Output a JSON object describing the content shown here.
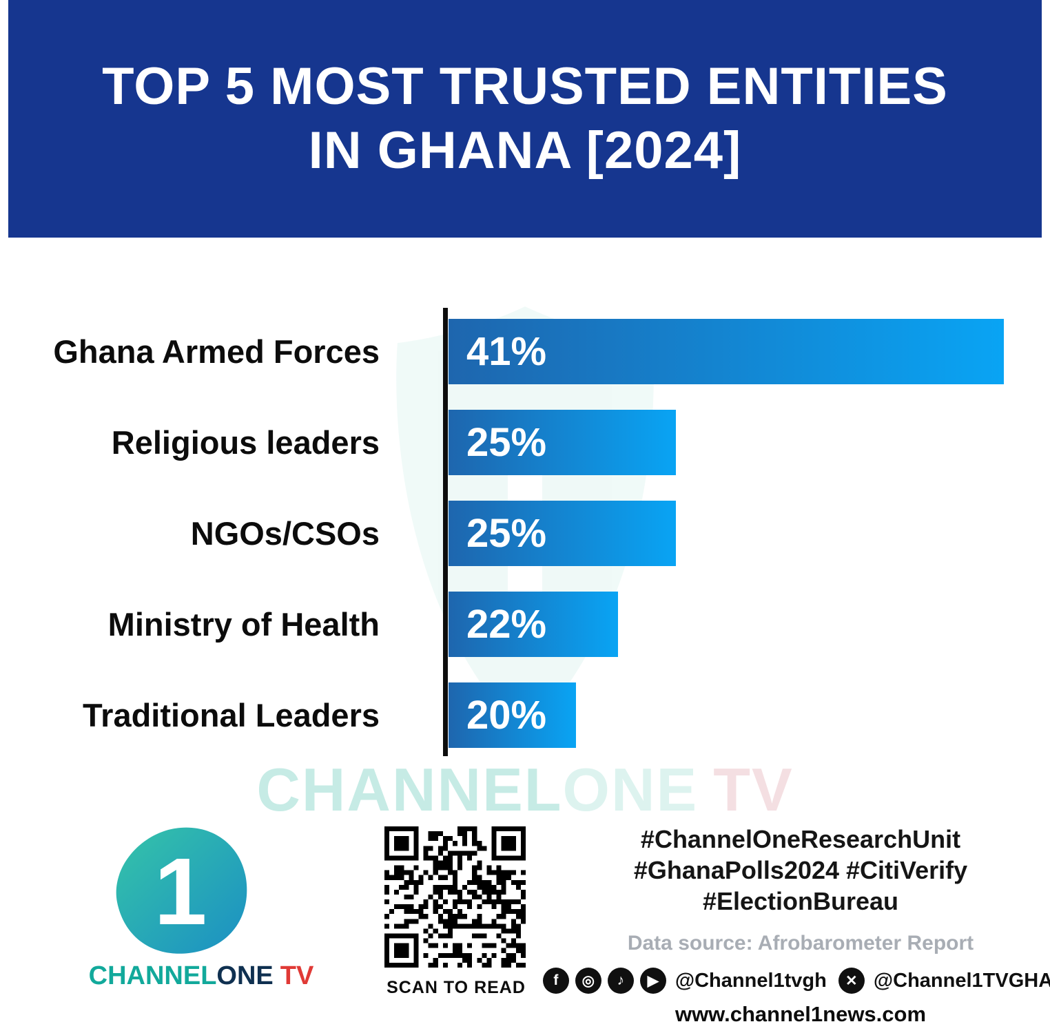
{
  "header": {
    "title_line1": "TOP 5 MOST TRUSTED ENTITIES",
    "title_line2": "IN GHANA [2024]"
  },
  "chart_data": {
    "type": "bar",
    "orientation": "horizontal",
    "title": "TOP 5 MOST TRUSTED ENTITIES IN GHANA [2024]",
    "categories": [
      "Ghana Armed Forces",
      "Religious leaders",
      "NGOs/CSOs",
      "Ministry of Health",
      "Traditional Leaders"
    ],
    "values": [
      41,
      25,
      25,
      22,
      20
    ],
    "value_labels": [
      "41%",
      "25%",
      "25%",
      "22%",
      "20%"
    ],
    "xlabel": "",
    "ylabel": "",
    "xlim": [
      0,
      41
    ],
    "grid": false,
    "legend": false,
    "bar_color_start": "#1e66ae",
    "bar_color_end": "#09a4f4",
    "bar_widths_pct": [
      100,
      41,
      41,
      30.5,
      23
    ]
  },
  "watermark": {
    "channel": "CHANNEL",
    "one": "ONE",
    "tv": "TV"
  },
  "footer": {
    "logo": {
      "one_glyph": "1",
      "channel": "CHANNEL",
      "one": "ONE",
      "tv": "TV"
    },
    "qr_caption": "SCAN TO READ",
    "hashtags_line1": "#ChannelOneResearchUnit",
    "hashtags_line2": "#GhanaPolls2024 #CitiVerify",
    "hashtags_line3": "#ElectionBureau",
    "data_source": "Data source: Afrobarometer Report",
    "social": {
      "facebook_glyph": "f",
      "instagram_glyph": "◎",
      "tiktok_glyph": "♪",
      "youtube_glyph": "▶",
      "x_glyph": "✕",
      "handle1": "@Channel1tvgh",
      "handle2": "@Channel1TVGHA"
    },
    "website": "www.channel1news.com"
  }
}
